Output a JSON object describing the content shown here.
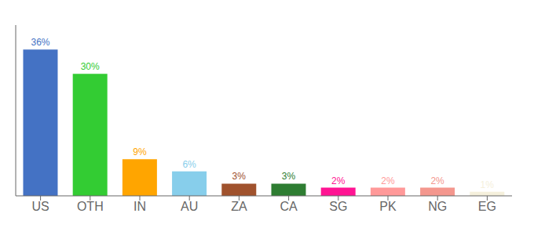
{
  "chart_data": {
    "type": "bar",
    "categories": [
      "US",
      "OTH",
      "IN",
      "AU",
      "ZA",
      "CA",
      "SG",
      "PK",
      "NG",
      "EG"
    ],
    "values": [
      36,
      30,
      9,
      6,
      3,
      3,
      2,
      2,
      2,
      1
    ],
    "value_labels": [
      "36%",
      "30%",
      "9%",
      "6%",
      "3%",
      "3%",
      "2%",
      "2%",
      "2%",
      "1%"
    ],
    "data_labels": true,
    "colors": [
      "#4472C4",
      "#33CC33",
      "#FFA500",
      "#87CEEB",
      "#A0522D",
      "#2E7D32",
      "#FF1493",
      "#FF9999",
      "#F4978E",
      "#F5F0DC"
    ],
    "ylim": [
      0,
      42
    ],
    "tick_labels": "x",
    "grid": false
  }
}
